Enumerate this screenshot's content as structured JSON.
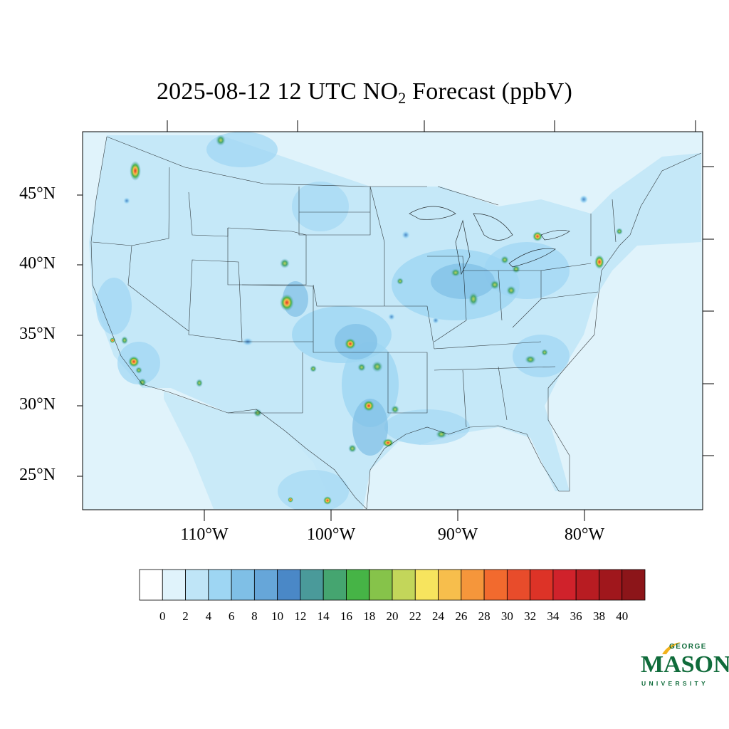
{
  "title": {
    "prefix": "2025-08-12 12 UTC NO",
    "subscript": "2",
    "suffix": " Forecast (ppbV)"
  },
  "map": {
    "region": "Contiguous United States",
    "background_color": "#e0f3fb",
    "latitude_labels": [
      "45°N",
      "40°N",
      "35°N",
      "30°N",
      "25°N"
    ],
    "longitude_labels": [
      "110°W",
      "100°W",
      "90°W",
      "80°W"
    ]
  },
  "colorbar": {
    "tick_labels": [
      "0",
      "2",
      "4",
      "6",
      "8",
      "10",
      "12",
      "14",
      "16",
      "18",
      "20",
      "22",
      "24",
      "26",
      "28",
      "30",
      "32",
      "34",
      "36",
      "38",
      "40"
    ],
    "colors": [
      "#ffffff",
      "#e0f3fb",
      "#bfe5f7",
      "#9ed6f3",
      "#7fbfe6",
      "#66a6d9",
      "#4a88c7",
      "#4a9a9a",
      "#45a570",
      "#46b446",
      "#86c34a",
      "#c3d65a",
      "#f7e45e",
      "#f7be4c",
      "#f5963b",
      "#f26a2e",
      "#e84c2b",
      "#dd3327",
      "#d0222b",
      "#b81c22",
      "#a0171c",
      "#8c1519"
    ]
  },
  "logo": {
    "line1": "GEORGE",
    "line2": "MASON",
    "line3": "UNIVERSITY",
    "color": "#0f6b3a",
    "accent_color": "#f2b21c"
  }
}
